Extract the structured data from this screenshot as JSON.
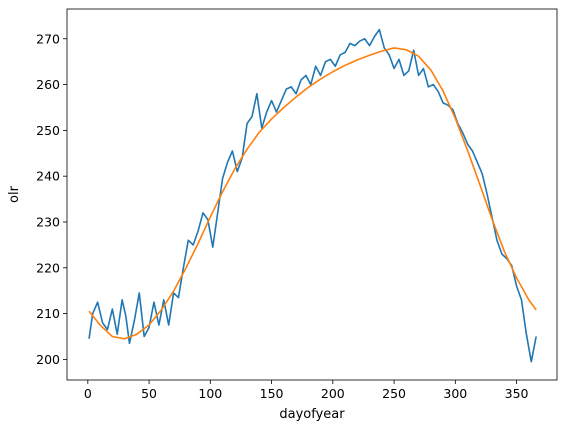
{
  "chart_data": {
    "type": "line",
    "xlabel": "dayofyear",
    "ylabel": "olr",
    "xlim": [
      -17,
      383
    ],
    "ylim": [
      195.5,
      276.5
    ],
    "xticks": [
      0,
      50,
      100,
      150,
      200,
      250,
      300,
      350
    ],
    "yticks": [
      200,
      210,
      220,
      230,
      240,
      250,
      260,
      270
    ],
    "grid": false,
    "series": [
      {
        "color": "#1f77b4",
        "x": [
          1,
          4,
          8,
          12,
          16,
          20,
          24,
          28,
          31,
          34,
          38,
          42,
          46,
          50,
          54,
          58,
          62,
          66,
          70,
          74,
          78,
          82,
          86,
          90,
          94,
          98,
          102,
          106,
          110,
          114,
          118,
          122,
          126,
          130,
          134,
          138,
          142,
          146,
          150,
          154,
          158,
          162,
          166,
          170,
          174,
          178,
          182,
          186,
          190,
          194,
          198,
          202,
          206,
          210,
          214,
          218,
          222,
          226,
          230,
          234,
          238,
          242,
          246,
          250,
          254,
          258,
          262,
          266,
          270,
          274,
          278,
          282,
          286,
          290,
          294,
          298,
          302,
          306,
          310,
          314,
          318,
          322,
          326,
          330,
          334,
          338,
          342,
          346,
          350,
          354,
          358,
          362,
          366
        ],
        "y": [
          204.5,
          210,
          212.5,
          208,
          206.5,
          211,
          205.5,
          213,
          209.5,
          203.5,
          208.5,
          214.5,
          205,
          207,
          212.5,
          207.5,
          213,
          207.5,
          214.5,
          213.5,
          220,
          226,
          225,
          228,
          232,
          230.5,
          224.5,
          232,
          239.5,
          243,
          245.5,
          241,
          244,
          251.5,
          253,
          258,
          250.5,
          254,
          256.5,
          254,
          256.5,
          259,
          259.5,
          258,
          261,
          262,
          260,
          264,
          262,
          265,
          265.5,
          264,
          266.5,
          267,
          269,
          268.5,
          269.5,
          270,
          268.5,
          270.5,
          272,
          268,
          266.5,
          263.5,
          265.5,
          262,
          263,
          267.5,
          262,
          263.5,
          259.5,
          260,
          258.5,
          256,
          255.5,
          254.5,
          251.5,
          249.5,
          247,
          245.5,
          243,
          240.5,
          236,
          231,
          226,
          223,
          222,
          220.5,
          216,
          213,
          205.5,
          199.5,
          205
        ]
      },
      {
        "color": "#ff7f0e",
        "x": [
          1,
          10,
          20,
          30,
          40,
          50,
          60,
          70,
          80,
          90,
          100,
          110,
          120,
          130,
          140,
          150,
          160,
          170,
          180,
          190,
          200,
          210,
          220,
          230,
          240,
          250,
          260,
          270,
          280,
          290,
          300,
          310,
          320,
          330,
          340,
          350,
          360,
          366
        ],
        "y": [
          210.5,
          207.5,
          205,
          204.5,
          205.5,
          207.5,
          210.8,
          214.9,
          219.9,
          225.3,
          231.1,
          236.6,
          241.6,
          245.9,
          249.6,
          252.5,
          255,
          257.3,
          259.4,
          261.2,
          262.8,
          264.2,
          265.4,
          266.4,
          267.3,
          268,
          267.6,
          266.2,
          263.2,
          258.6,
          252.6,
          245.6,
          238.2,
          230.6,
          223.6,
          217.8,
          213,
          210.8
        ]
      }
    ]
  }
}
